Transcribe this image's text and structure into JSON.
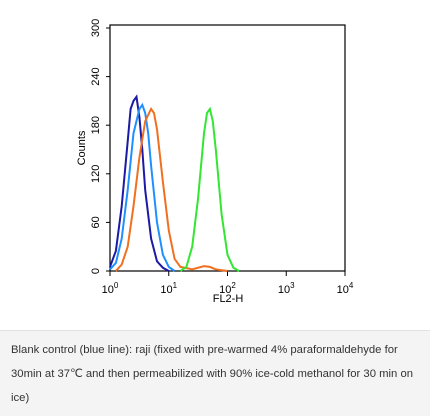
{
  "chart_data": {
    "type": "line",
    "x_label": "FL2-H",
    "y_label": "Counts",
    "xscale": "log",
    "xlim": [
      1,
      10000
    ],
    "xticks": [
      {
        "value": 1,
        "label": "10",
        "sup": "0"
      },
      {
        "value": 10,
        "label": "10",
        "sup": "1"
      },
      {
        "value": 100,
        "label": "10",
        "sup": "2"
      },
      {
        "value": 1000,
        "label": "10",
        "sup": "3"
      },
      {
        "value": 10000,
        "label": "10",
        "sup": "4"
      }
    ],
    "ylim": [
      0,
      300
    ],
    "yticks": [
      0,
      60,
      120,
      180,
      240,
      300
    ],
    "series": [
      {
        "color": "#1a1aa6",
        "x": [
          1,
          1.26,
          1.58,
          2.0,
          2.24,
          2.51,
          2.82,
          3.16,
          3.55,
          3.98,
          5.01,
          6.31,
          7.94,
          10
        ],
        "values": [
          5,
          25,
          80,
          160,
          200,
          210,
          215,
          190,
          150,
          100,
          40,
          12,
          4,
          0
        ]
      },
      {
        "color": "#1e90ff",
        "x": [
          1,
          1.26,
          1.58,
          2.0,
          2.51,
          3.16,
          3.55,
          3.98,
          4.47,
          5.01,
          6.31,
          7.94,
          10,
          12.6
        ],
        "values": [
          2,
          10,
          40,
          100,
          170,
          200,
          205,
          195,
          170,
          130,
          60,
          20,
          5,
          0
        ]
      },
      {
        "color": "#f07020",
        "x": [
          1.26,
          1.58,
          2.0,
          2.51,
          3.16,
          3.98,
          5.01,
          5.62,
          6.31,
          7.94,
          10,
          12.6,
          15.8,
          25.1,
          39.8,
          50.1,
          63.1,
          100
        ],
        "values": [
          0,
          8,
          30,
          80,
          140,
          185,
          200,
          195,
          175,
          110,
          50,
          15,
          5,
          2,
          6,
          5,
          2,
          0
        ]
      },
      {
        "color": "#33e633",
        "x": [
          15.8,
          20,
          25.1,
          31.6,
          39.8,
          44.7,
          50.1,
          56.2,
          63.1,
          79.4,
          100,
          126,
          158
        ],
        "values": [
          0,
          5,
          30,
          90,
          170,
          195,
          200,
          185,
          150,
          70,
          20,
          4,
          0
        ]
      }
    ]
  },
  "caption": "Blank control (blue line): raji (fixed with pre-warmed 4% paraformaldehyde for 30min at 37℃ and then permeabilized with 90% ice-cold methanol for 30 min on ice)"
}
